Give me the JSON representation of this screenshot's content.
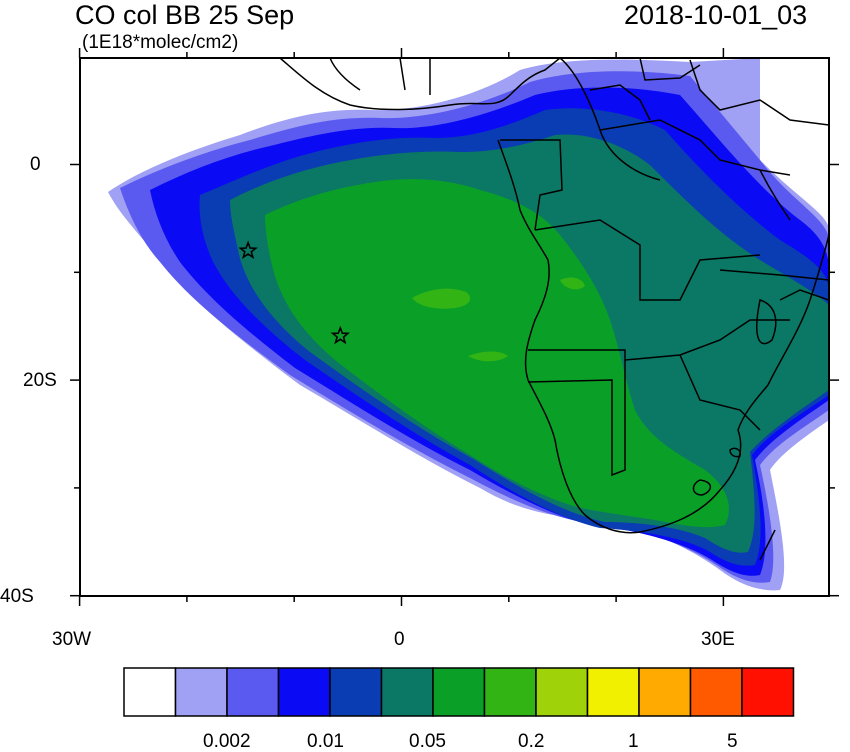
{
  "header": {
    "title": "CO col BB 25 Sep",
    "subtitle": "(1E18*molec/cm2)",
    "datetime": "2018-10-01_03"
  },
  "map": {
    "lat_labels": [
      "0",
      "20S",
      "40S"
    ],
    "lon_labels": [
      "30W",
      "0",
      "30E"
    ],
    "markers": [
      {
        "name": "star-marker-1",
        "lon": -14.3,
        "lat": -8.0
      },
      {
        "name": "star-marker-2",
        "lon": -5.7,
        "lat": -15.9
      }
    ]
  },
  "colorbar": {
    "colors": [
      "#ffffff",
      "#a0a0f5",
      "#5a5af0",
      "#0a0af5",
      "#0a3cb4",
      "#0a7864",
      "#0aa028",
      "#32b414",
      "#a0d20a",
      "#f0f000",
      "#ffaa00",
      "#ff5a00",
      "#ff1000"
    ],
    "labels": [
      "0.002",
      "0.01",
      "0.05",
      "0.2",
      "1",
      "5"
    ]
  }
}
